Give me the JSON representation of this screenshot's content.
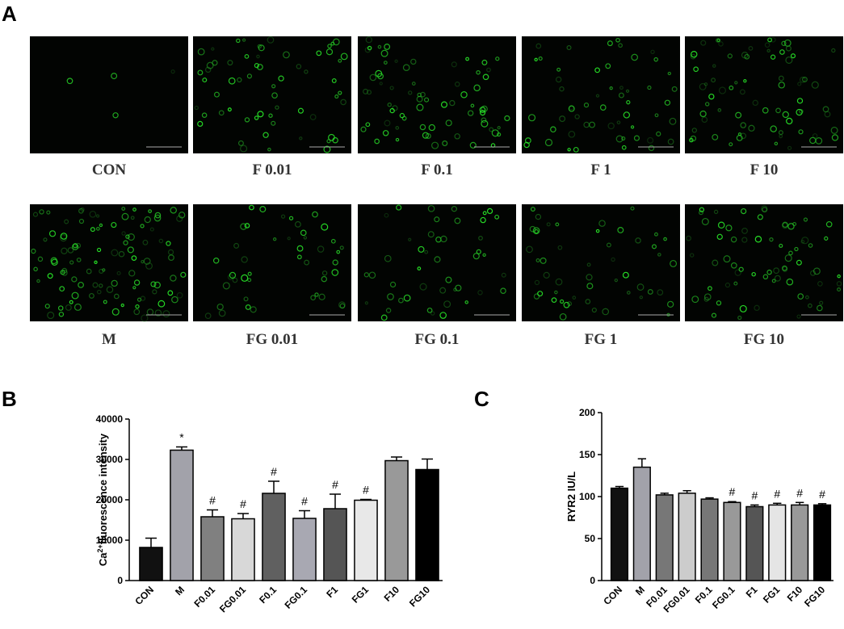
{
  "panel_a": {
    "label": "A",
    "row1": [
      "CON",
      "F 0.01",
      "F 0.1",
      "F 1",
      "F 10"
    ],
    "row2": [
      "M",
      "FG 0.01",
      "FG 0.1",
      "FG 1",
      "FG 10"
    ]
  },
  "chart_data": [
    {
      "type": "bar",
      "panel": "B",
      "ylabel": [
        "Ca",
        "2+",
        "fluorescence intensity"
      ],
      "categories": [
        "CON",
        "M",
        "F0.01",
        "FG0.01",
        "F0.1",
        "FG0.1",
        "F1",
        "FG1",
        "F10",
        "FG10"
      ],
      "values": [
        8200,
        32300,
        15800,
        15300,
        21600,
        15400,
        17800,
        19900,
        29700,
        27500
      ],
      "errors": [
        2300,
        800,
        1700,
        1300,
        3000,
        1900,
        3600,
        200,
        900,
        2600
      ],
      "annotations": [
        null,
        "*",
        "#",
        "#",
        "#",
        "#",
        "#",
        "#",
        null,
        null
      ],
      "colors": [
        "#111111",
        "#a2a2aa",
        "#808080",
        "#d8d8d8",
        "#606060",
        "#a8a8b2",
        "#555555",
        "#e8e8e8",
        "#999999",
        "#000000"
      ],
      "ylim": [
        0,
        40000
      ],
      "yticks": [
        0,
        10000,
        20000,
        30000,
        40000
      ]
    },
    {
      "type": "bar",
      "panel": "C",
      "ylabel": [
        "RYR2 IU/L"
      ],
      "categories": [
        "CON",
        "M",
        "F0.01",
        "FG0.01",
        "F0.1",
        "FG0.1",
        "F1",
        "FG1",
        "F10",
        "FG10"
      ],
      "values": [
        110,
        135,
        102,
        104,
        97,
        93,
        88,
        90,
        90,
        90
      ],
      "errors": [
        2,
        10,
        2,
        3,
        1.5,
        1,
        2,
        2,
        3,
        1.5
      ],
      "annotations": [
        null,
        null,
        null,
        null,
        null,
        "#",
        "#",
        "#",
        "#",
        "#"
      ],
      "colors": [
        "#111111",
        "#a2a2aa",
        "#777777",
        "#cccccc",
        "#777777",
        "#999999",
        "#555555",
        "#e5e5e5",
        "#999999",
        "#000000"
      ],
      "ylim": [
        0,
        200
      ],
      "yticks": [
        0,
        50,
        100,
        150,
        200
      ]
    }
  ]
}
